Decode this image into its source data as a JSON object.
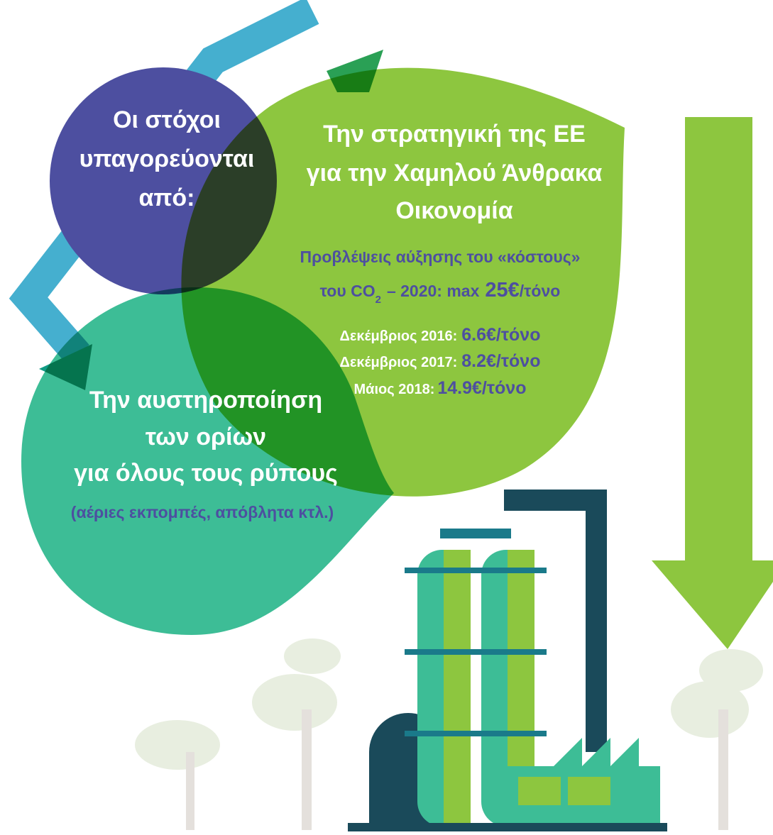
{
  "goals": {
    "title": [
      "Οι στόχοι",
      "υπαγορεύονται",
      "από:"
    ]
  },
  "eu_strategy": {
    "title": [
      "Την στρατηγική της ΕΕ",
      "για την Χαμηλού Άνθρακα",
      "Οικονομία"
    ],
    "forecast": {
      "line1": "Προβλέψεις αύξησης του «κόστους»",
      "line2": {
        "prefix": "του CO",
        "subscript": "2",
        "middle": "– 2020: max",
        "value": "25€",
        "unit": "/τόνο"
      }
    },
    "prices": [
      {
        "label": "Δεκέμβριος 2016:",
        "value": "6.6€",
        "unit": "/τόνο"
      },
      {
        "label": "Δεκέμβριος 2017:",
        "value": "8.2€",
        "unit": "/τόνο"
      },
      {
        "label": "Μάιος 2018:",
        "value": "14.9€",
        "unit": "/τόνο"
      }
    ]
  },
  "limits": {
    "title": [
      "Την αυστηροποίηση",
      "των ορίων",
      "για όλους τους ρύπους"
    ],
    "note": "(αέριες εκπομπές, απόβλητα κτλ.)"
  }
}
